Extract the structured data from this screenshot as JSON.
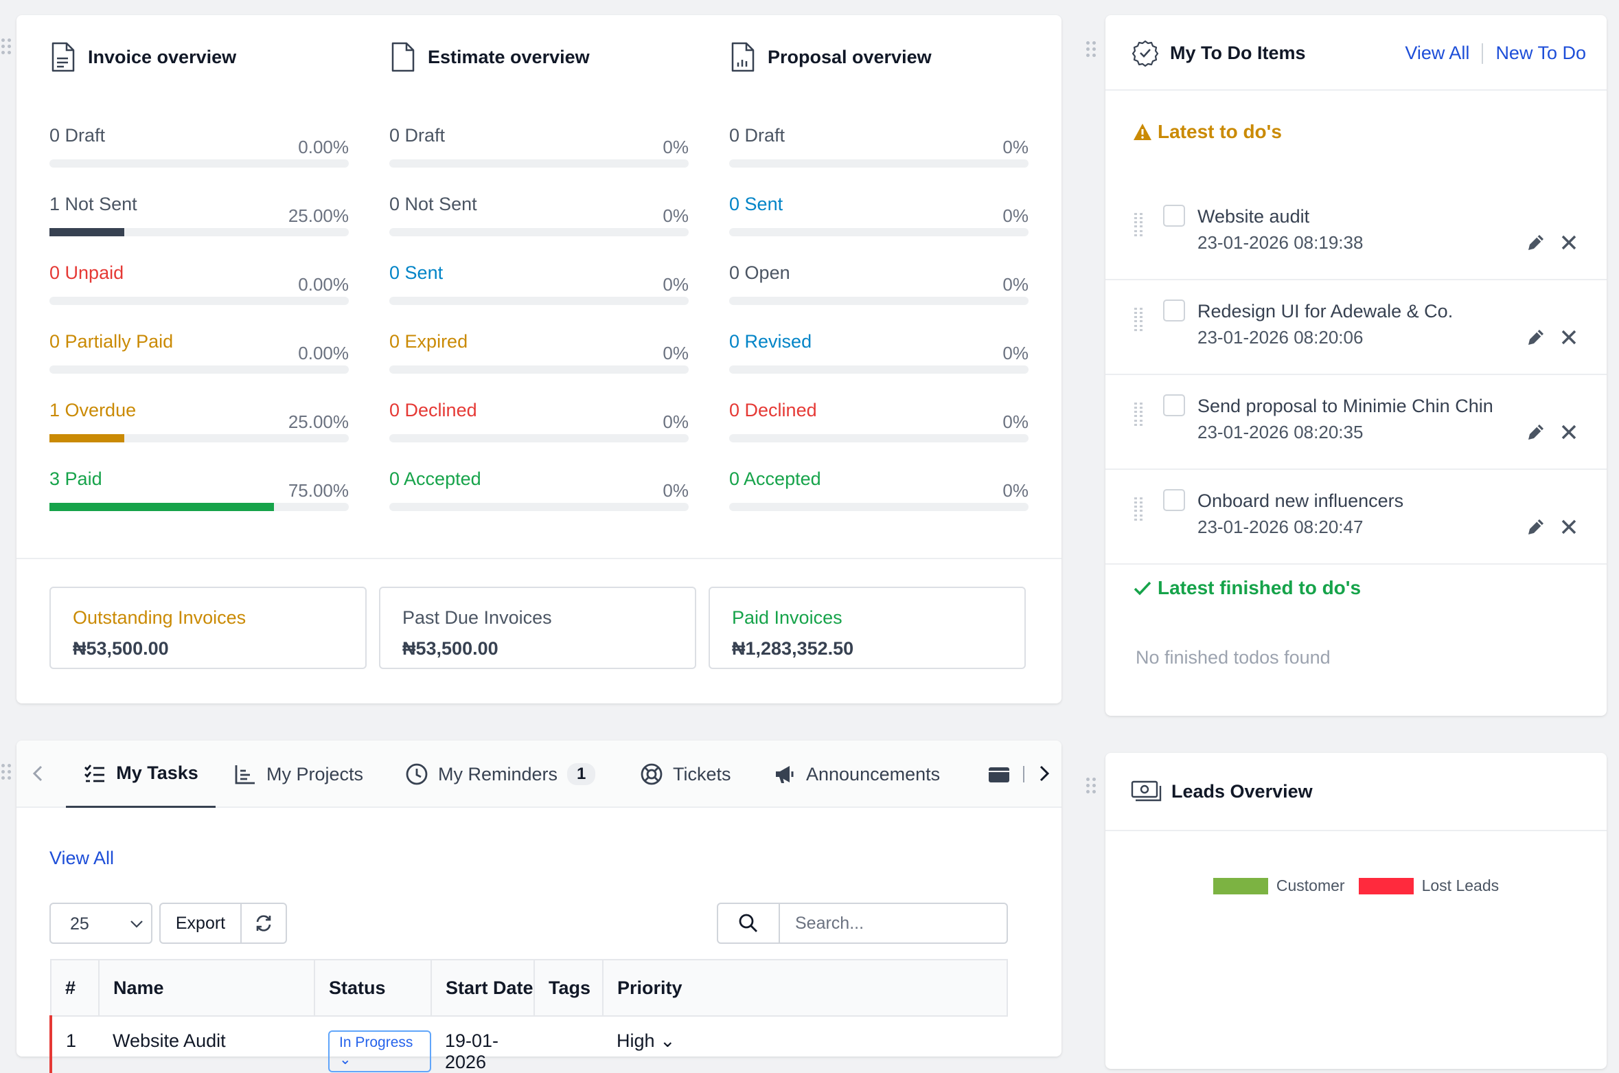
{
  "overview": {
    "invoice": {
      "title": "Invoice overview",
      "rows": [
        {
          "count": "0",
          "label": "Draft",
          "pct": "0.00%",
          "fill": 0,
          "color": "#4b5563"
        },
        {
          "count": "1",
          "label": "Not Sent",
          "pct": "25.00%",
          "fill": 25,
          "color": "#4b5563"
        },
        {
          "count": "0",
          "label": "Unpaid",
          "pct": "0.00%",
          "fill": 0,
          "color": "#e53935"
        },
        {
          "count": "0",
          "label": "Partially Paid",
          "pct": "0.00%",
          "fill": 0,
          "color": "#ca8a04"
        },
        {
          "count": "1",
          "label": "Overdue",
          "pct": "25.00%",
          "fill": 25,
          "color": "#ca8a04"
        },
        {
          "count": "3",
          "label": "Paid",
          "pct": "75.00%",
          "fill": 75,
          "color": "#16a34a"
        }
      ]
    },
    "estimate": {
      "title": "Estimate overview",
      "rows": [
        {
          "count": "0",
          "label": "Draft",
          "pct": "0%",
          "fill": 0,
          "color": "#4b5563"
        },
        {
          "count": "0",
          "label": "Not Sent",
          "pct": "0%",
          "fill": 0,
          "color": "#4b5563"
        },
        {
          "count": "0",
          "label": "Sent",
          "pct": "0%",
          "fill": 0,
          "color": "#0284c7"
        },
        {
          "count": "0",
          "label": "Expired",
          "pct": "0%",
          "fill": 0,
          "color": "#ca8a04"
        },
        {
          "count": "0",
          "label": "Declined",
          "pct": "0%",
          "fill": 0,
          "color": "#e53935"
        },
        {
          "count": "0",
          "label": "Accepted",
          "pct": "0%",
          "fill": 0,
          "color": "#16a34a"
        }
      ]
    },
    "proposal": {
      "title": "Proposal overview",
      "rows": [
        {
          "count": "0",
          "label": "Draft",
          "pct": "0%",
          "fill": 0,
          "color": "#4b5563"
        },
        {
          "count": "0",
          "label": "Sent",
          "pct": "0%",
          "fill": 0,
          "color": "#0284c7"
        },
        {
          "count": "0",
          "label": "Open",
          "pct": "0%",
          "fill": 0,
          "color": "#4b5563"
        },
        {
          "count": "0",
          "label": "Revised",
          "pct": "0%",
          "fill": 0,
          "color": "#0284c7"
        },
        {
          "count": "0",
          "label": "Declined",
          "pct": "0%",
          "fill": 0,
          "color": "#e53935"
        },
        {
          "count": "0",
          "label": "Accepted",
          "pct": "0%",
          "fill": 0,
          "color": "#16a34a"
        }
      ]
    },
    "summaries": [
      {
        "title": "Outstanding Invoices",
        "value": "₦53,500.00",
        "color": "#ca8a04"
      },
      {
        "title": "Past Due Invoices",
        "value": "₦53,500.00",
        "color": "#4b5563"
      },
      {
        "title": "Paid Invoices",
        "value": "₦1,283,352.50",
        "color": "#16a34a"
      }
    ]
  },
  "todo": {
    "title": "My To Do Items",
    "view_all": "View All",
    "new_todo": "New To Do",
    "latest_label": "Latest to do's",
    "items": [
      {
        "name": "Website audit",
        "date": "23-01-2026 08:19:38"
      },
      {
        "name": "Redesign UI for Adewale & Co.",
        "date": "23-01-2026 08:20:06"
      },
      {
        "name": "Send proposal to Minimie Chin Chin",
        "date": "23-01-2026 08:20:35"
      },
      {
        "name": "Onboard new influencers",
        "date": "23-01-2026 08:20:47"
      }
    ],
    "finished_label": "Latest finished to do's",
    "no_finished": "No finished todos found"
  },
  "tabs": {
    "items": [
      {
        "label": "My Tasks",
        "icon": "task-list-icon"
      },
      {
        "label": "My Projects",
        "icon": "chart-icon"
      },
      {
        "label": "My Reminders",
        "icon": "clock-icon",
        "badge": "1"
      },
      {
        "label": "Tickets",
        "icon": "lifebuoy-icon"
      },
      {
        "label": "Announcements",
        "icon": "megaphone-icon"
      }
    ],
    "view_all": "View All",
    "page_size": "25",
    "export_label": "Export",
    "search_placeholder": "Search...",
    "table": {
      "headers": [
        "#",
        "Name",
        "Status",
        "Start Date",
        "Tags",
        "Priority"
      ],
      "rows": [
        {
          "num": "1",
          "name": "Website Audit",
          "status": "In Progress",
          "start": "19-01-2026",
          "tags": "",
          "priority": "High"
        }
      ]
    }
  },
  "leads": {
    "title": "Leads Overview",
    "legend": [
      {
        "name": "Customer",
        "color": "#7cb342"
      },
      {
        "name": "Lost Leads",
        "color": "#ff2a3d"
      }
    ]
  }
}
